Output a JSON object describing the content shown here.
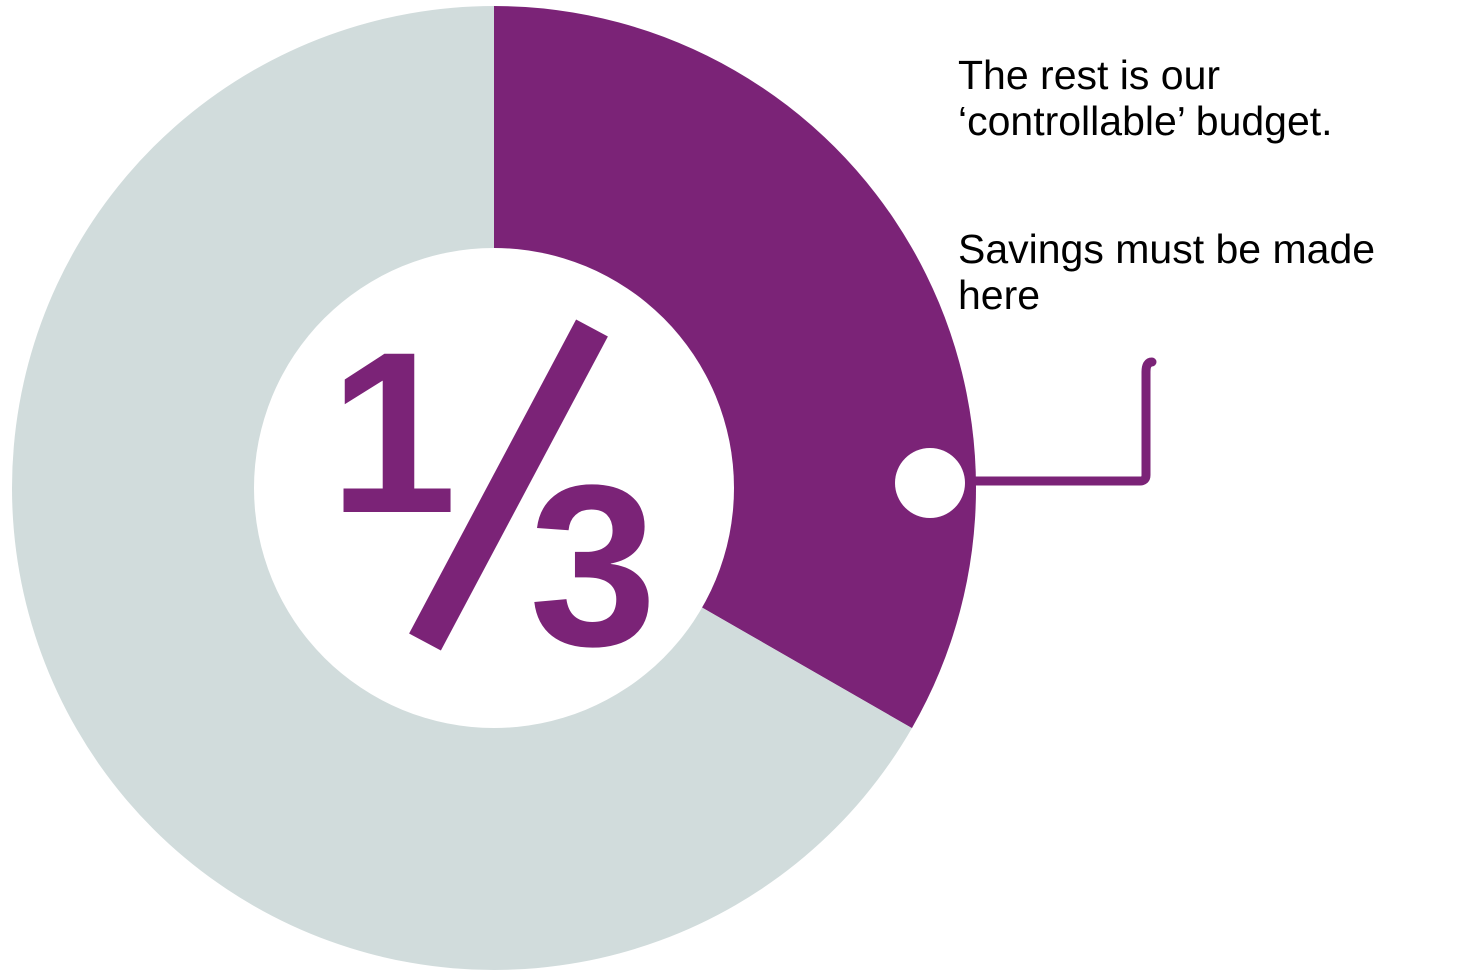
{
  "chart_data": {
    "type": "pie",
    "variant": "donut",
    "fraction_label": {
      "numerator": "1",
      "denominator": "3"
    },
    "slices": [
      {
        "value": 0.333,
        "color": "#7B2377"
      },
      {
        "value": 0.667,
        "color": "#D1DCDC"
      }
    ],
    "start_angle_deg": 0,
    "direction": "clockwise"
  },
  "callout": {
    "paragraph_1_line_1": "The rest is our",
    "paragraph_1_line_2": "‘controllable’ budget.",
    "paragraph_2_line_1": "Savings must be made",
    "paragraph_2_line_2": "here"
  },
  "colors": {
    "accent": "#7B2377",
    "muted": "#D1DCDC",
    "background": "#FFFFFF"
  }
}
